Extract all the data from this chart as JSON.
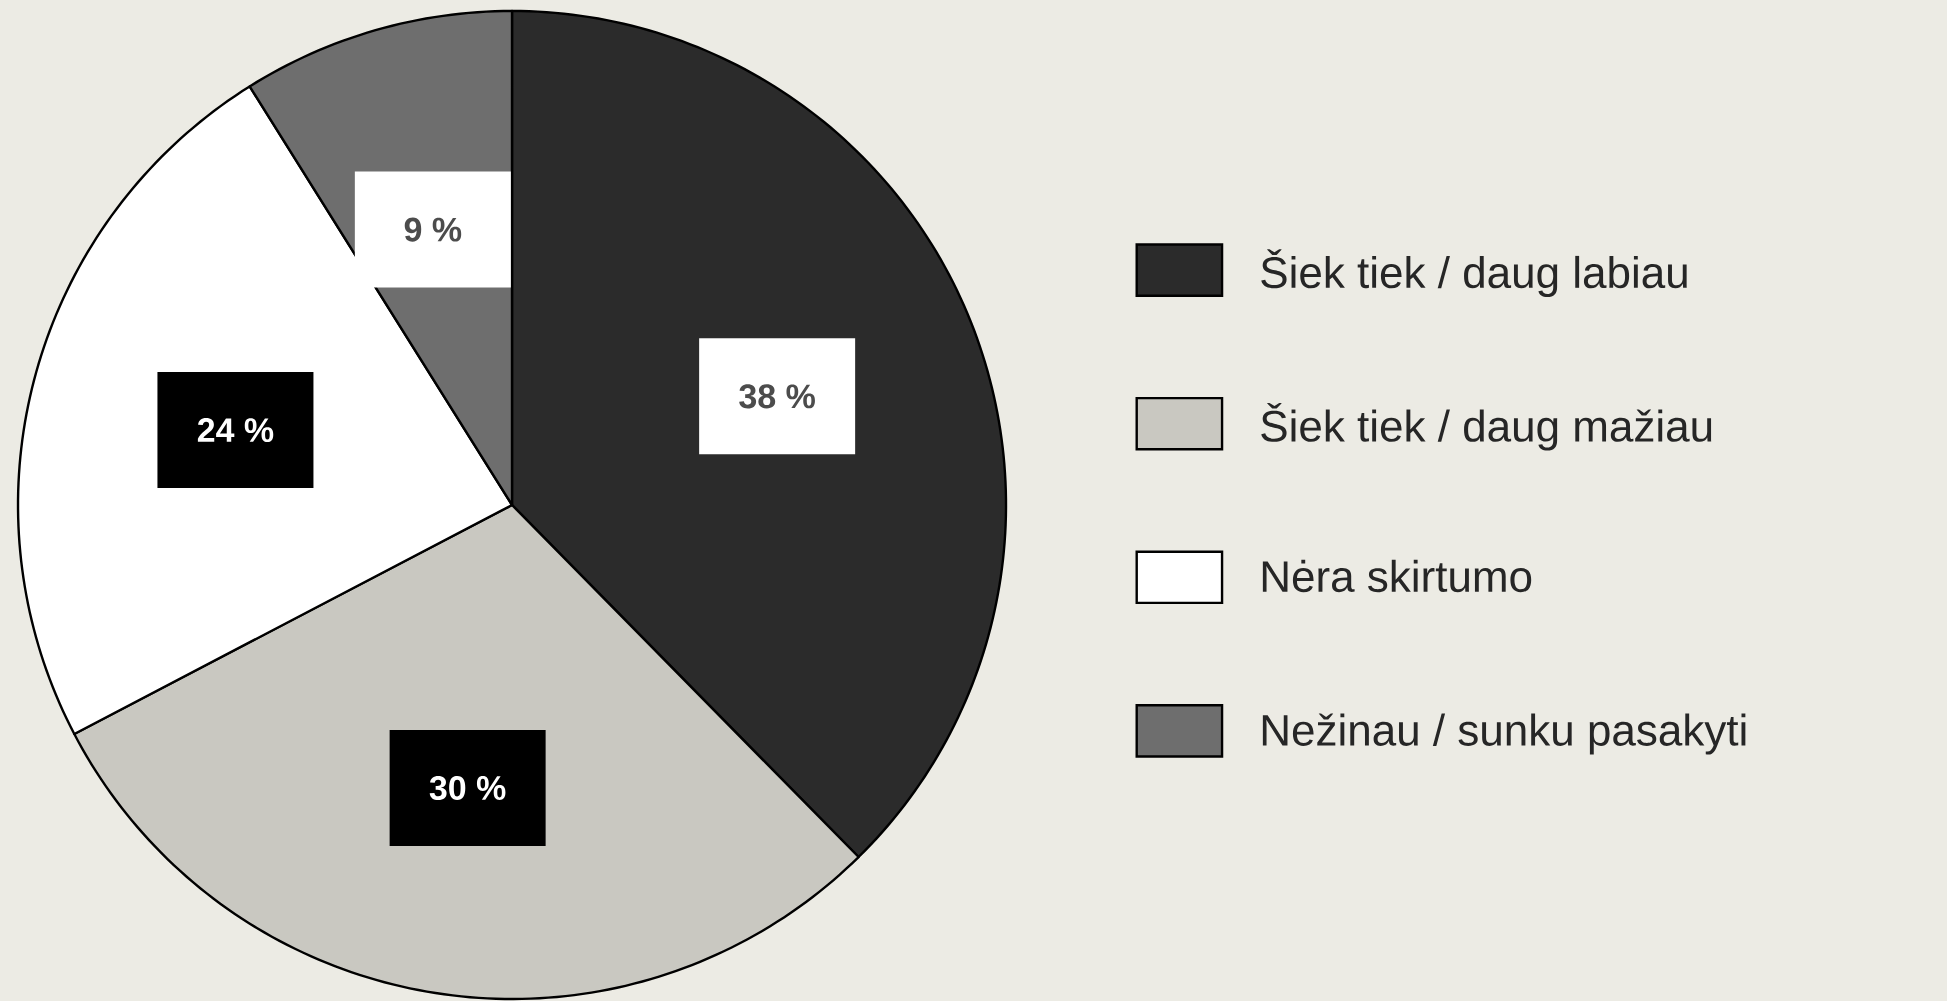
{
  "chart_data": {
    "type": "pie",
    "categories": [
      "Šiek tiek / daug labiau",
      "Šiek tiek / daug mažiau",
      "Nėra skirtumo",
      "Nežinau / sunku pasakyti"
    ],
    "values": [
      38,
      30,
      24,
      9
    ],
    "colors": [
      "#2b2b2b",
      "#c9c8c1",
      "#ffffff",
      "#6e6e6e"
    ],
    "value_labels": [
      "38 %",
      "30 %",
      "24 %",
      "9 %"
    ],
    "legend": "right"
  }
}
